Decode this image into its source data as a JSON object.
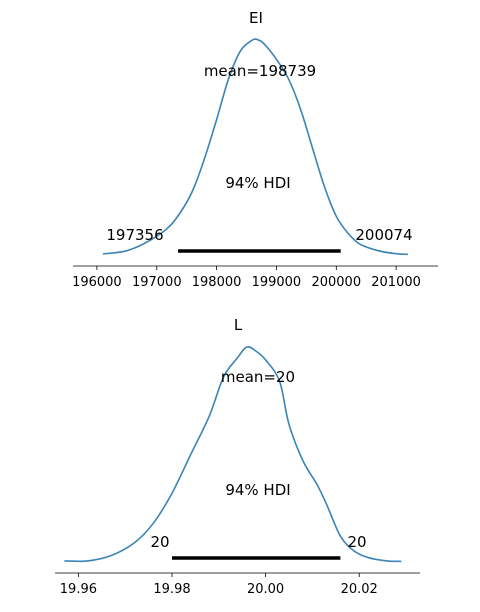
{
  "chart_data": [
    {
      "type": "line",
      "title": "EI",
      "mean_label": "mean=198739",
      "hdi_label": "94% HDI",
      "hdi_low_label": "197356",
      "hdi_high_label": "200074",
      "hdi": [
        197356,
        200074
      ],
      "xlim": [
        195600,
        201700
      ],
      "xticks": [
        196000,
        197000,
        198000,
        199000,
        200000,
        201000
      ],
      "xtick_labels": [
        "196000",
        "197000",
        "198000",
        "199000",
        "200000",
        "201000"
      ],
      "series": [
        {
          "x": [
            196100,
            196500,
            196900,
            197200,
            197400,
            197600,
            197800,
            198000,
            198200,
            198400,
            198600,
            198700,
            198800,
            199000,
            199200,
            199400,
            199600,
            199800,
            200000,
            200200,
            200400,
            200700,
            201000,
            201200
          ],
          "y": [
            0.005,
            0.02,
            0.07,
            0.13,
            0.2,
            0.3,
            0.45,
            0.63,
            0.82,
            0.95,
            1.0,
            1.0,
            0.98,
            0.91,
            0.82,
            0.68,
            0.5,
            0.32,
            0.18,
            0.1,
            0.05,
            0.02,
            0.006,
            0.003
          ]
        }
      ],
      "color": "#3b84b5",
      "hdi_color": "#000000"
    },
    {
      "type": "line",
      "title": "L",
      "mean_label": "mean=20",
      "hdi_label": "94% HDI",
      "hdi_low_label": "20",
      "hdi_high_label": "20",
      "hdi": [
        19.98,
        20.016
      ],
      "xlim": [
        19.955,
        20.033
      ],
      "xticks": [
        19.96,
        19.98,
        20.0,
        20.02
      ],
      "xtick_labels": [
        "19.96",
        "19.98",
        "20.00",
        "20.02"
      ],
      "series": [
        {
          "x": [
            19.957,
            19.962,
            19.967,
            19.972,
            19.976,
            19.98,
            19.984,
            19.988,
            19.991,
            19.994,
            19.996,
            19.998,
            20.0,
            20.003,
            20.005,
            20.008,
            20.011,
            20.013,
            20.016,
            20.019,
            20.022,
            20.026,
            20.029
          ],
          "y": [
            0.005,
            0.005,
            0.03,
            0.09,
            0.18,
            0.32,
            0.5,
            0.68,
            0.86,
            0.95,
            1.0,
            0.98,
            0.94,
            0.84,
            0.64,
            0.47,
            0.36,
            0.27,
            0.12,
            0.05,
            0.02,
            0.005,
            0.003
          ]
        }
      ],
      "color": "#3b84b5",
      "hdi_color": "#000000"
    }
  ]
}
